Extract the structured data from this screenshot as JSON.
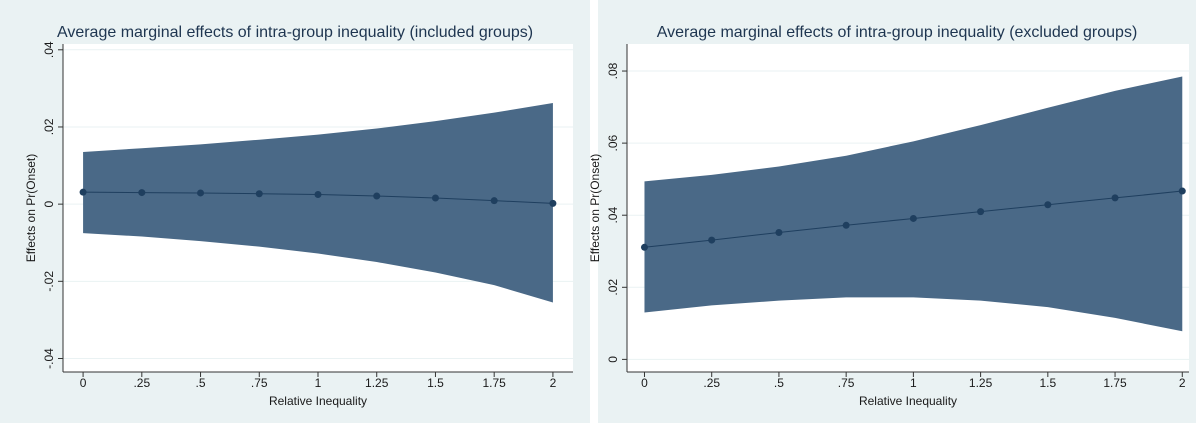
{
  "chart_data": [
    {
      "type": "line",
      "title": "Average marginal effects of intra-group inequality (included groups)",
      "xlabel": "Relative Inequality",
      "ylabel": "Effects on Pr(Onset)",
      "x": [
        0,
        0.25,
        0.5,
        0.75,
        1,
        1.25,
        1.5,
        1.75,
        2
      ],
      "values": [
        0.0031,
        0.003,
        0.0029,
        0.0027,
        0.0025,
        0.0021,
        0.0016,
        0.0009,
        0.0002
      ],
      "ci_upper": [
        0.0135,
        0.0145,
        0.0155,
        0.0167,
        0.018,
        0.0196,
        0.0215,
        0.0237,
        0.0262
      ],
      "ci_lower": [
        -0.0075,
        -0.0084,
        -0.0096,
        -0.011,
        -0.0128,
        -0.015,
        -0.0177,
        -0.021,
        -0.0255
      ],
      "color": "#1f3f5f",
      "band_color": "#4a6987",
      "xlim": [
        -0.0855,
        2.0855
      ],
      "xticks": [
        0,
        {
          "value": 0.25,
          "label": ".25"
        },
        {
          "value": 0.5,
          "label": ".5"
        },
        {
          "value": 0.75,
          "label": ".75"
        },
        1,
        {
          "value": 1.25,
          "label": "1.25"
        },
        {
          "value": 1.5,
          "label": "1.5"
        },
        {
          "value": 1.75,
          "label": "1.75"
        },
        2
      ],
      "ylim": [
        -0.0435,
        0.0415
      ],
      "yticks": [
        {
          "value": -0.04,
          "label": "-.04"
        },
        {
          "value": -0.02,
          "label": "-.02"
        },
        0,
        {
          "value": 0.02,
          "label": ".02"
        },
        {
          "value": 0.04,
          "label": ".04"
        }
      ],
      "grid": true
    },
    {
      "type": "line",
      "title": "Average marginal effects of intra-group inequality (excluded groups)",
      "xlabel": "Relative Inequality",
      "ylabel": "Effects on Pr(Onset)",
      "x": [
        0,
        0.25,
        0.5,
        0.75,
        1,
        1.25,
        1.5,
        1.75,
        2
      ],
      "values": [
        0.0311,
        0.0331,
        0.0352,
        0.0372,
        0.0391,
        0.041,
        0.0429,
        0.0448,
        0.0467
      ],
      "ci_upper": [
        0.0494,
        0.0512,
        0.0535,
        0.0565,
        0.0605,
        0.065,
        0.0698,
        0.0745,
        0.0785
      ],
      "ci_lower": [
        0.013,
        0.015,
        0.0163,
        0.0172,
        0.0172,
        0.0163,
        0.0145,
        0.0115,
        0.0078
      ],
      "color": "#1f3f5f",
      "band_color": "#4a6987",
      "xlim": [
        -0.065,
        2.025
      ],
      "xticks": [
        0,
        {
          "value": 0.25,
          "label": ".25"
        },
        {
          "value": 0.5,
          "label": ".5"
        },
        {
          "value": 0.75,
          "label": ".75"
        },
        1,
        {
          "value": 1.25,
          "label": "1.25"
        },
        {
          "value": 1.5,
          "label": "1.5"
        },
        {
          "value": 1.75,
          "label": "1.75"
        },
        2
      ],
      "ylim": [
        -0.0035,
        0.0875
      ],
      "yticks": [
        0,
        {
          "value": 0.02,
          "label": ".02"
        },
        {
          "value": 0.04,
          "label": ".04"
        },
        {
          "value": 0.06,
          "label": ".06"
        },
        {
          "value": 0.08,
          "label": ".08"
        }
      ],
      "grid": true
    }
  ]
}
